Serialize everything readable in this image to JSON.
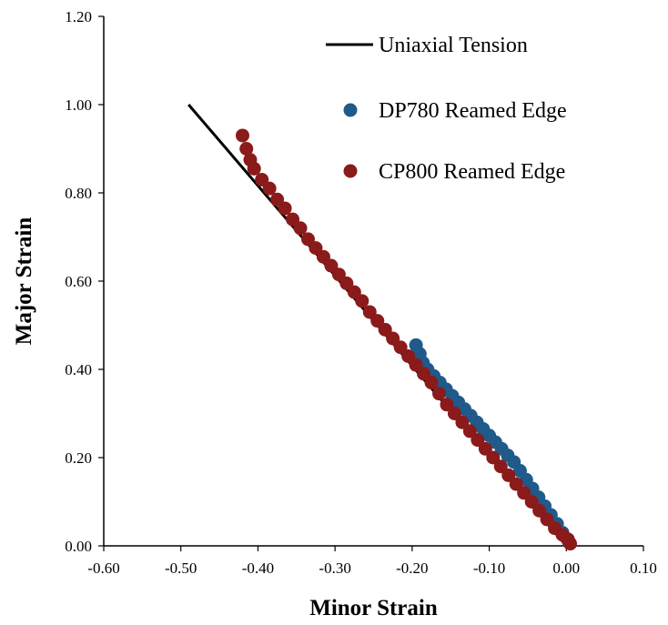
{
  "chart_data": {
    "type": "scatter",
    "xlabel": "Minor Strain",
    "ylabel": "Major Strain",
    "xlim": [
      -0.6,
      0.1
    ],
    "ylim": [
      0.0,
      1.2
    ],
    "xticks": [
      -0.6,
      -0.5,
      -0.4,
      -0.3,
      -0.2,
      -0.1,
      0.0,
      0.1
    ],
    "xtick_labels": [
      "-0.60",
      "-0.50",
      "-0.40",
      "-0.30",
      "-0.20",
      "-0.10",
      "0.00",
      "0.10"
    ],
    "yticks": [
      0.0,
      0.2,
      0.4,
      0.6,
      0.8,
      1.0,
      1.2
    ],
    "ytick_labels": [
      "0.00",
      "0.20",
      "0.40",
      "0.60",
      "0.80",
      "1.00",
      "1.20"
    ],
    "grid": false,
    "legend_position": "top-right",
    "series": [
      {
        "name": "Uniaxial Tension",
        "kind": "line",
        "color": "#000000",
        "x": [
          0.0,
          -0.49
        ],
        "y": [
          0.0,
          1.0
        ]
      },
      {
        "name": "DP780 Reamed Edge",
        "kind": "scatter",
        "color": "#1f5a8a",
        "x": [
          0.003,
          -0.005,
          -0.012,
          -0.02,
          -0.028,
          -0.036,
          -0.044,
          -0.052,
          -0.06,
          -0.068,
          -0.076,
          -0.084,
          -0.092,
          -0.1,
          -0.108,
          -0.116,
          -0.124,
          -0.132,
          -0.14,
          -0.148,
          -0.156,
          -0.164,
          -0.172,
          -0.18,
          -0.186,
          -0.19,
          -0.195
        ],
        "y": [
          0.01,
          0.03,
          0.05,
          0.07,
          0.09,
          0.11,
          0.13,
          0.15,
          0.17,
          0.19,
          0.205,
          0.22,
          0.235,
          0.25,
          0.265,
          0.28,
          0.295,
          0.31,
          0.325,
          0.34,
          0.355,
          0.37,
          0.385,
          0.4,
          0.415,
          0.435,
          0.455
        ]
      },
      {
        "name": "CP800 Reamed Edge",
        "kind": "scatter",
        "color": "#8b1a1a",
        "x": [
          0.005,
          0.002,
          -0.005,
          -0.015,
          -0.025,
          -0.035,
          -0.045,
          -0.055,
          -0.065,
          -0.075,
          -0.085,
          -0.095,
          -0.105,
          -0.115,
          -0.125,
          -0.135,
          -0.145,
          -0.155,
          -0.165,
          -0.175,
          -0.185,
          -0.195,
          -0.205,
          -0.215,
          -0.225,
          -0.235,
          -0.245,
          -0.255,
          -0.265,
          -0.275,
          -0.285,
          -0.295,
          -0.305,
          -0.315,
          -0.325,
          -0.335,
          -0.345,
          -0.355,
          -0.365,
          -0.375,
          -0.385,
          -0.395,
          -0.405,
          -0.41,
          -0.415,
          -0.42
        ],
        "y": [
          0.005,
          0.015,
          0.025,
          0.04,
          0.06,
          0.08,
          0.1,
          0.12,
          0.14,
          0.16,
          0.18,
          0.2,
          0.22,
          0.24,
          0.26,
          0.28,
          0.3,
          0.32,
          0.345,
          0.37,
          0.39,
          0.41,
          0.43,
          0.45,
          0.47,
          0.49,
          0.51,
          0.53,
          0.555,
          0.575,
          0.595,
          0.615,
          0.635,
          0.655,
          0.675,
          0.695,
          0.72,
          0.74,
          0.765,
          0.785,
          0.81,
          0.83,
          0.855,
          0.875,
          0.9,
          0.93
        ]
      }
    ]
  }
}
